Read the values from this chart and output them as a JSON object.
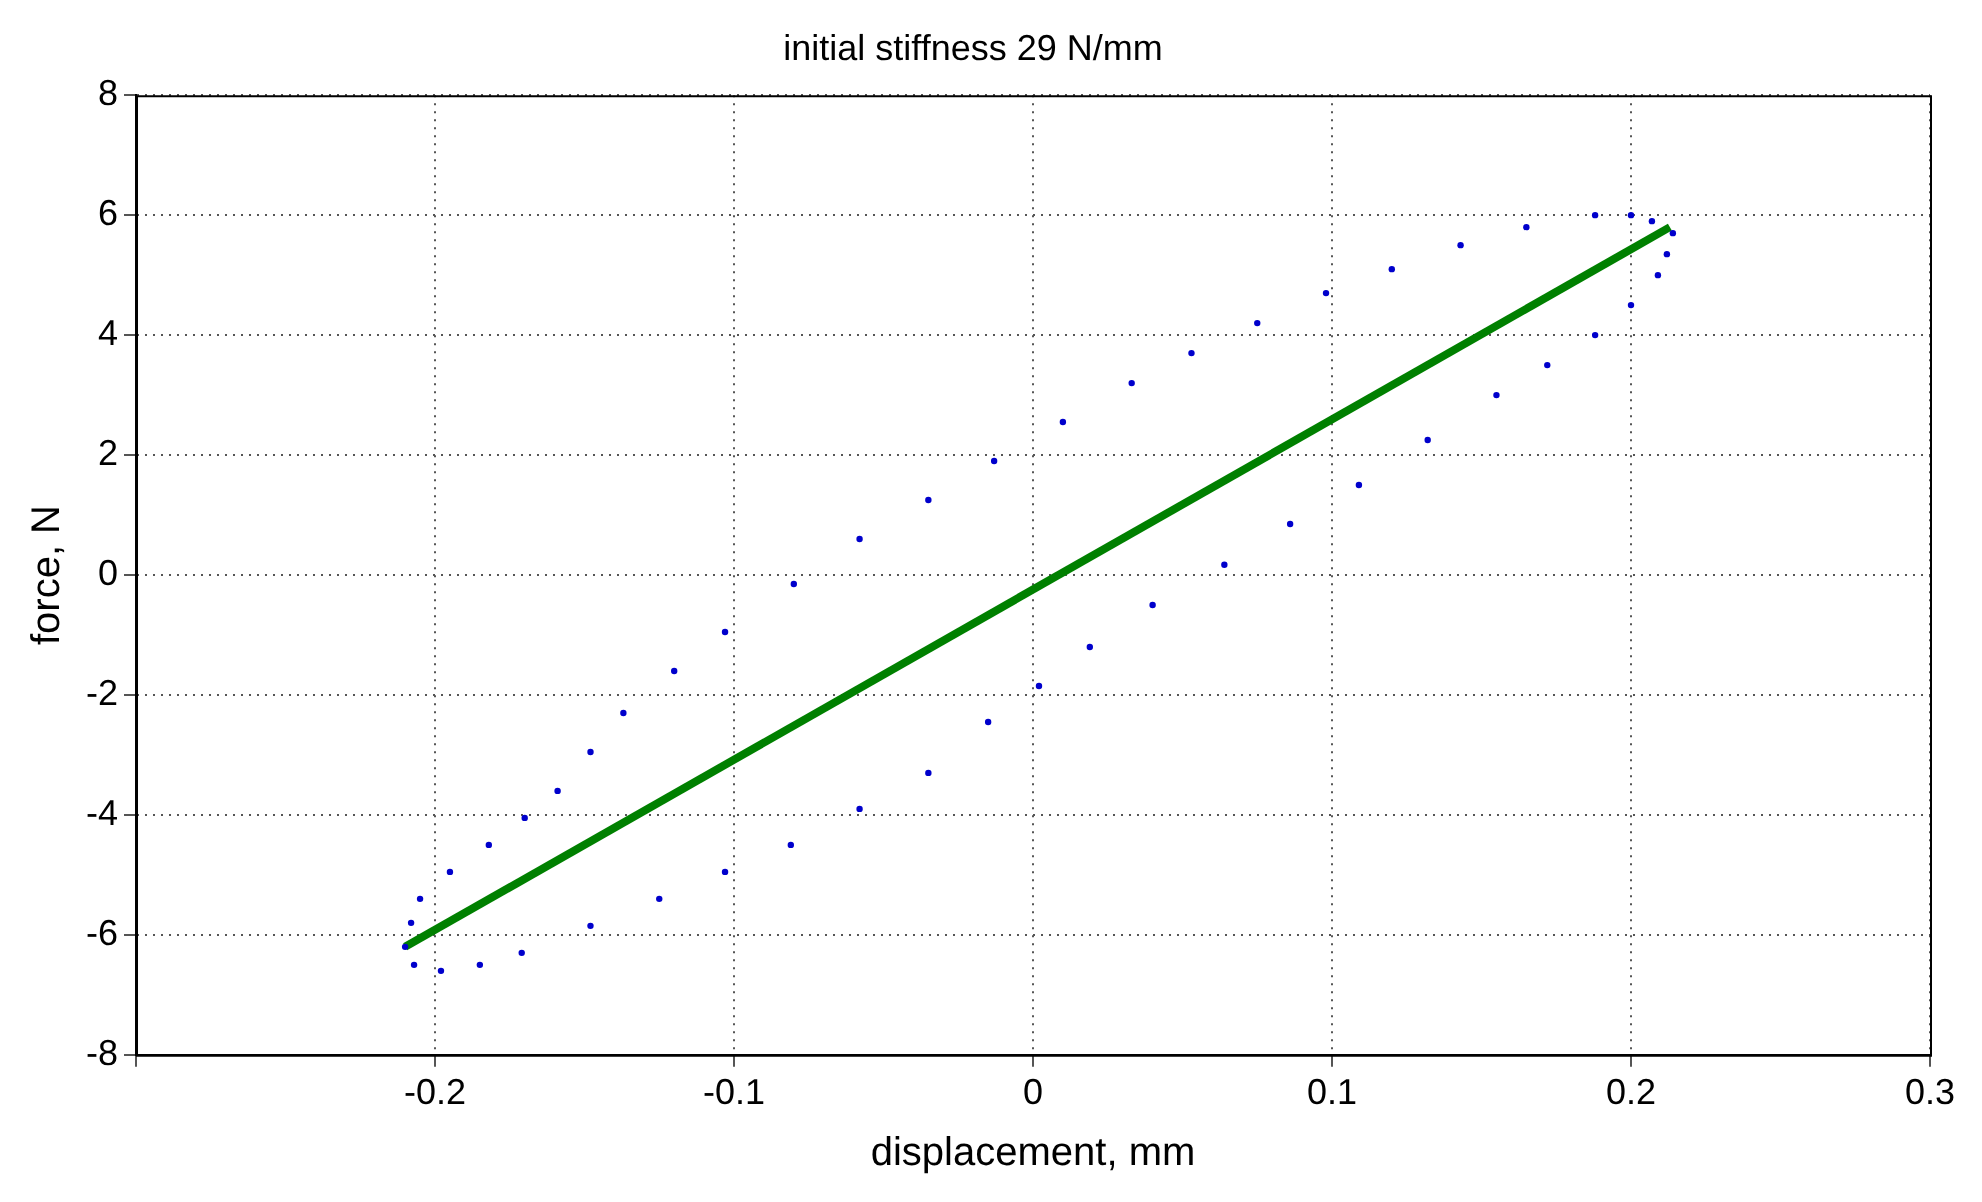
{
  "chart_data": {
    "type": "scatter",
    "title": "initial stiffness 29 N/mm",
    "xlabel": "displacement, mm",
    "ylabel": "force, N",
    "xlim": [
      -0.3,
      0.3
    ],
    "xticks": [
      {
        "value": -0.3,
        "label": null
      },
      -0.2,
      -0.1,
      0,
      0.1,
      0.2,
      0.3
    ],
    "ylim": [
      -8,
      8
    ],
    "yticks": [
      -8,
      -6,
      -4,
      -2,
      0,
      2,
      4,
      6,
      8
    ],
    "grid": true,
    "legend": false,
    "series": [
      {
        "color": "#0000cc",
        "marker": "circle",
        "x": [
          -0.21,
          -0.208,
          -0.205,
          -0.195,
          -0.182,
          -0.17,
          -0.159,
          -0.148,
          -0.137,
          -0.12,
          -0.103,
          -0.08,
          -0.058,
          -0.035,
          -0.013,
          0.01,
          0.033,
          0.053,
          0.075,
          0.098,
          0.12,
          0.143,
          0.165,
          0.188,
          0.2,
          0.207,
          0.214,
          0.212,
          0.209,
          0.2,
          0.188,
          0.172,
          0.155,
          0.132,
          0.109,
          0.086,
          0.064,
          0.04,
          0.019,
          0.002,
          -0.015,
          -0.035,
          -0.058,
          -0.081,
          -0.103,
          -0.125,
          -0.148,
          -0.171,
          -0.185,
          -0.198,
          -0.207
        ],
        "values": [
          -6.2,
          -5.8,
          -5.4,
          -4.95,
          -4.5,
          -4.05,
          -3.6,
          -2.95,
          -2.3,
          -1.6,
          -0.95,
          -0.15,
          0.6,
          1.25,
          1.9,
          2.55,
          3.2,
          3.7,
          4.2,
          4.7,
          5.1,
          5.5,
          5.8,
          6.0,
          6.0,
          5.9,
          5.7,
          5.35,
          5.0,
          4.5,
          4.0,
          3.5,
          3.0,
          2.25,
          1.5,
          0.85,
          0.17,
          -0.5,
          -1.2,
          -1.85,
          -2.45,
          -3.3,
          -3.9,
          -4.5,
          -4.95,
          -5.4,
          -5.85,
          -6.3,
          -6.5,
          -6.6,
          -6.5
        ]
      },
      {
        "type": "line",
        "color": "#008000",
        "marker": "none",
        "x": [
          -0.21,
          0.213
        ],
        "values": [
          -6.2,
          5.8
        ]
      }
    ]
  }
}
